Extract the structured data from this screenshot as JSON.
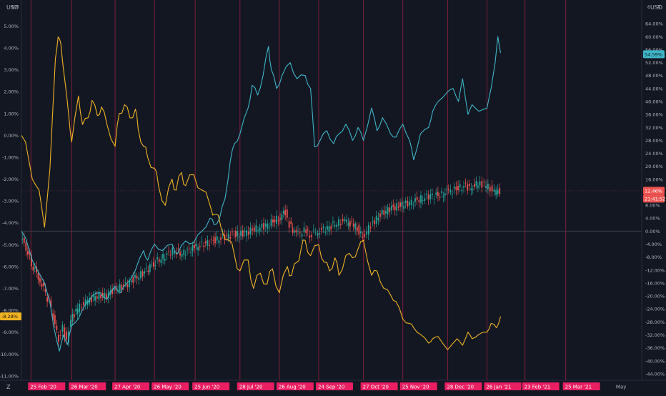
{
  "left_axis_currency": "USD",
  "left_axis_close": "x",
  "right_axis_currency": "USD",
  "right_axis_close": "x",
  "tz_button": "Z",
  "chart_data": {
    "type": "line",
    "title": "",
    "colors": {
      "background": "#131722",
      "grid": "#1f2332",
      "session_line": "#7c1f3a",
      "cyan_series": "#3fb6c8",
      "gold_series": "#f0b323",
      "candle_up": "#26a69a",
      "candle_down": "#ef5350",
      "axis_text": "#b2b5be",
      "date_label_bg": "#e91e63",
      "date_label_text": "#ffffff"
    },
    "left_axis": {
      "unit": "%",
      "range": [
        -11.2,
        5.7
      ],
      "ticks": [
        "5.00%",
        "4.00%",
        "3.00%",
        "2.00%",
        "1.00%",
        "0.00%",
        "-1.00%",
        "-2.00%",
        "-3.00%",
        "-4.00%",
        "-5.00%",
        "-6.00%",
        "-7.00%",
        "-8.00%",
        "-9.00%",
        "-10.00%",
        "-11.00%"
      ],
      "top_partial_tick": "6"
    },
    "right_axis": {
      "unit": "%",
      "range": [
        -46,
        68
      ],
      "ticks": [
        "64.00%",
        "60.00%",
        "56.00%",
        "52.00%",
        "48.00%",
        "44.00%",
        "40.00%",
        "36.00%",
        "32.00%",
        "28.00%",
        "24.00%",
        "20.00%",
        "16.00%",
        "12.00%",
        "8.00%",
        "4.00%",
        "0.00%",
        "-4.00%",
        "-8.00%",
        "-12.00%",
        "-16.00%",
        "-20.00%",
        "-24.00%",
        "-28.00%",
        "-32.00%",
        "-36.00%",
        "-40.00%",
        "-44.00%"
      ],
      "top_partial_tick": "6"
    },
    "x_axis": {
      "start": "2020-02-18",
      "end": "2021-05-20",
      "date_labels": [
        {
          "date": "2020-02-25",
          "label": "25 Feb '20"
        },
        {
          "date": "2020-03-26",
          "label": "26 Mar '20"
        },
        {
          "date": "2020-04-27",
          "label": "27 Apr '20"
        },
        {
          "date": "2020-05-26",
          "label": "26 May '20"
        },
        {
          "date": "2020-06-25",
          "label": "25 Jun '20"
        },
        {
          "date": "2020-07-28",
          "label": "28 Jul '20"
        },
        {
          "date": "2020-08-26",
          "label": "26 Aug '20"
        },
        {
          "date": "2020-09-24",
          "label": "24 Sep '20"
        },
        {
          "date": "2020-10-27",
          "label": "27 Oct '20"
        },
        {
          "date": "2020-11-25",
          "label": "25 Nov '20"
        },
        {
          "date": "2020-12-28",
          "label": "28 Dec '20"
        },
        {
          "date": "2021-01-26",
          "label": "26 Jan '21"
        },
        {
          "date": "2021-02-23",
          "label": "23 Feb '21"
        },
        {
          "date": "2021-03-25",
          "label": "25 Mar '21"
        }
      ],
      "plain_labels": [
        {
          "date": "2021-05-01",
          "label": "May"
        }
      ]
    },
    "badges": {
      "cyan_last": "54.59%",
      "candle_last": "12.46%",
      "candle_countdown": "21:41:52",
      "gold_last": "-8.28%"
    },
    "series": [
      {
        "role": "cyan",
        "axis": "right",
        "points": [
          [
            "2020-02-18",
            0.0
          ],
          [
            "2020-02-21",
            -2.0
          ],
          [
            "2020-02-26",
            -9.0
          ],
          [
            "2020-03-02",
            -13.0
          ],
          [
            "2020-03-06",
            -16.0
          ],
          [
            "2020-03-10",
            -22.0
          ],
          [
            "2020-03-13",
            -30.0
          ],
          [
            "2020-03-17",
            -37.0
          ],
          [
            "2020-03-20",
            -32.0
          ],
          [
            "2020-03-23",
            -35.0
          ],
          [
            "2020-03-26",
            -29.0
          ],
          [
            "2020-03-31",
            -27.0
          ],
          [
            "2020-04-06",
            -22.0
          ],
          [
            "2020-04-10",
            -20.0
          ],
          [
            "2020-04-16",
            -19.0
          ],
          [
            "2020-04-21",
            -21.0
          ],
          [
            "2020-04-27",
            -17.0
          ],
          [
            "2020-05-01",
            -19.0
          ],
          [
            "2020-05-06",
            -16.0
          ],
          [
            "2020-05-12",
            -12.0
          ],
          [
            "2020-05-18",
            -6.0
          ],
          [
            "2020-05-21",
            -9.0
          ],
          [
            "2020-05-26",
            -4.0
          ],
          [
            "2020-06-01",
            -6.0
          ],
          [
            "2020-06-08",
            -4.0
          ],
          [
            "2020-06-12",
            -7.0
          ],
          [
            "2020-06-18",
            -3.0
          ],
          [
            "2020-06-24",
            -3.5
          ],
          [
            "2020-06-30",
            0.0
          ],
          [
            "2020-07-06",
            4.0
          ],
          [
            "2020-07-09",
            2.0
          ],
          [
            "2020-07-13",
            4.0
          ],
          [
            "2020-07-17",
            10.0
          ],
          [
            "2020-07-21",
            22.0
          ],
          [
            "2020-07-24",
            27.0
          ],
          [
            "2020-07-28",
            30.0
          ],
          [
            "2020-08-03",
            38.0
          ],
          [
            "2020-08-06",
            45.0
          ],
          [
            "2020-08-10",
            42.0
          ],
          [
            "2020-08-14",
            48.0
          ],
          [
            "2020-08-18",
            57.0
          ],
          [
            "2020-08-20",
            50.0
          ],
          [
            "2020-08-24",
            44.0
          ],
          [
            "2020-08-28",
            48.0
          ],
          [
            "2020-09-03",
            52.0
          ],
          [
            "2020-09-08",
            47.0
          ],
          [
            "2020-09-14",
            48.0
          ],
          [
            "2020-09-18",
            44.0
          ],
          [
            "2020-09-21",
            26.0
          ],
          [
            "2020-09-25",
            28.0
          ],
          [
            "2020-09-30",
            31.0
          ],
          [
            "2020-10-05",
            27.0
          ],
          [
            "2020-10-09",
            30.0
          ],
          [
            "2020-10-14",
            33.0
          ],
          [
            "2020-10-19",
            28.0
          ],
          [
            "2020-10-23",
            32.0
          ],
          [
            "2020-10-27",
            28.0
          ],
          [
            "2020-11-02",
            38.0
          ],
          [
            "2020-11-06",
            31.0
          ],
          [
            "2020-11-10",
            35.0
          ],
          [
            "2020-11-16",
            30.0
          ],
          [
            "2020-11-20",
            29.0
          ],
          [
            "2020-11-25",
            33.0
          ],
          [
            "2020-11-30",
            28.0
          ],
          [
            "2020-12-03",
            22.0
          ],
          [
            "2020-12-08",
            30.0
          ],
          [
            "2020-12-14",
            32.0
          ],
          [
            "2020-12-17",
            37.0
          ],
          [
            "2020-12-21",
            40.0
          ],
          [
            "2020-12-28",
            43.0
          ],
          [
            "2021-01-01",
            44.0
          ],
          [
            "2021-01-05",
            40.0
          ],
          [
            "2021-01-08",
            47.0
          ],
          [
            "2021-01-12",
            36.0
          ],
          [
            "2021-01-15",
            39.0
          ],
          [
            "2021-01-20",
            37.0
          ],
          [
            "2021-01-26",
            38.0
          ],
          [
            "2021-01-29",
            44.0
          ],
          [
            "2021-02-01",
            52.0
          ],
          [
            "2021-02-03",
            60.0
          ],
          [
            "2021-02-05",
            55.0
          ]
        ]
      },
      {
        "role": "gold",
        "axis": "left",
        "points": [
          [
            "2020-02-18",
            0.0
          ],
          [
            "2020-02-21",
            -0.3
          ],
          [
            "2020-02-26",
            -2.0
          ],
          [
            "2020-03-02",
            -2.5
          ],
          [
            "2020-03-06",
            -4.2
          ],
          [
            "2020-03-10",
            -1.5
          ],
          [
            "2020-03-14",
            3.5
          ],
          [
            "2020-03-16",
            4.5
          ],
          [
            "2020-03-18",
            4.2
          ],
          [
            "2020-03-21",
            2.5
          ],
          [
            "2020-03-24",
            0.8
          ],
          [
            "2020-03-26",
            -0.3
          ],
          [
            "2020-03-31",
            1.8
          ],
          [
            "2020-04-03",
            0.5
          ],
          [
            "2020-04-07",
            0.8
          ],
          [
            "2020-04-10",
            1.6
          ],
          [
            "2020-04-14",
            0.9
          ],
          [
            "2020-04-17",
            1.3
          ],
          [
            "2020-04-21",
            0.5
          ],
          [
            "2020-04-27",
            -0.5
          ],
          [
            "2020-04-30",
            1.0
          ],
          [
            "2020-05-04",
            1.4
          ],
          [
            "2020-05-08",
            0.8
          ],
          [
            "2020-05-12",
            1.2
          ],
          [
            "2020-05-14",
            0.3
          ],
          [
            "2020-05-18",
            -0.5
          ],
          [
            "2020-05-21",
            -1.0
          ],
          [
            "2020-05-26",
            -1.5
          ],
          [
            "2020-05-29",
            -2.3
          ],
          [
            "2020-06-03",
            -3.2
          ],
          [
            "2020-06-08",
            -2.0
          ],
          [
            "2020-06-11",
            -2.5
          ],
          [
            "2020-06-15",
            -1.7
          ],
          [
            "2020-06-18",
            -2.3
          ],
          [
            "2020-06-24",
            -1.8
          ],
          [
            "2020-06-30",
            -2.5
          ],
          [
            "2020-07-06",
            -3.2
          ],
          [
            "2020-07-10",
            -3.6
          ],
          [
            "2020-07-14",
            -4.2
          ],
          [
            "2020-07-20",
            -4.8
          ],
          [
            "2020-07-24",
            -5.5
          ],
          [
            "2020-07-28",
            -6.2
          ],
          [
            "2020-08-03",
            -5.7
          ],
          [
            "2020-08-07",
            -7.0
          ],
          [
            "2020-08-12",
            -6.3
          ],
          [
            "2020-08-17",
            -6.8
          ],
          [
            "2020-08-21",
            -6.1
          ],
          [
            "2020-08-26",
            -7.2
          ],
          [
            "2020-09-01",
            -6.0
          ],
          [
            "2020-09-04",
            -6.4
          ],
          [
            "2020-09-08",
            -5.8
          ],
          [
            "2020-09-11",
            -5.2
          ],
          [
            "2020-09-14",
            -4.8
          ],
          [
            "2020-09-18",
            -5.5
          ],
          [
            "2020-09-24",
            -5.0
          ],
          [
            "2020-09-28",
            -5.8
          ],
          [
            "2020-10-02",
            -6.2
          ],
          [
            "2020-10-06",
            -5.6
          ],
          [
            "2020-10-09",
            -6.4
          ],
          [
            "2020-10-14",
            -5.5
          ],
          [
            "2020-10-19",
            -5.6
          ],
          [
            "2020-10-23",
            -5.2
          ],
          [
            "2020-10-27",
            -4.8
          ],
          [
            "2020-11-02",
            -6.4
          ],
          [
            "2020-11-06",
            -6.2
          ],
          [
            "2020-11-11",
            -7.0
          ],
          [
            "2020-11-16",
            -7.3
          ],
          [
            "2020-11-20",
            -7.6
          ],
          [
            "2020-11-25",
            -8.4
          ],
          [
            "2020-11-30",
            -8.6
          ],
          [
            "2020-12-03",
            -8.8
          ],
          [
            "2020-12-08",
            -9.1
          ],
          [
            "2020-12-14",
            -9.5
          ],
          [
            "2020-12-17",
            -9.3
          ],
          [
            "2020-12-21",
            -9.2
          ],
          [
            "2020-12-28",
            -9.8
          ],
          [
            "2021-01-04",
            -9.3
          ],
          [
            "2021-01-08",
            -9.6
          ],
          [
            "2021-01-12",
            -9.0
          ],
          [
            "2021-01-15",
            -9.3
          ],
          [
            "2021-01-20",
            -9.1
          ],
          [
            "2021-01-26",
            -9.0
          ],
          [
            "2021-01-29",
            -8.6
          ],
          [
            "2021-02-02",
            -8.8
          ],
          [
            "2021-02-05",
            -8.28
          ]
        ]
      }
    ],
    "candles": {
      "role": "candles",
      "axis": "right",
      "points": [
        [
          "2020-02-18",
          -2.0
        ],
        [
          "2020-02-22",
          -5.0
        ],
        [
          "2020-02-26",
          -10.0
        ],
        [
          "2020-03-02",
          -14.0
        ],
        [
          "2020-03-06",
          -18.0
        ],
        [
          "2020-03-10",
          -22.0
        ],
        [
          "2020-03-13",
          -27.0
        ],
        [
          "2020-03-17",
          -33.0
        ],
        [
          "2020-03-20",
          -30.0
        ],
        [
          "2020-03-23",
          -34.0
        ],
        [
          "2020-03-26",
          -27.0
        ],
        [
          "2020-03-31",
          -24.0
        ],
        [
          "2020-04-06",
          -22.0
        ],
        [
          "2020-04-13",
          -20.0
        ],
        [
          "2020-04-20",
          -20.0
        ],
        [
          "2020-04-27",
          -18.0
        ],
        [
          "2020-05-04",
          -17.0
        ],
        [
          "2020-05-11",
          -15.0
        ],
        [
          "2020-05-18",
          -13.0
        ],
        [
          "2020-05-26",
          -10.0
        ],
        [
          "2020-06-02",
          -8.0
        ],
        [
          "2020-06-09",
          -6.0
        ],
        [
          "2020-06-16",
          -7.0
        ],
        [
          "2020-06-25",
          -5.0
        ],
        [
          "2020-07-02",
          -4.0
        ],
        [
          "2020-07-09",
          -3.0
        ],
        [
          "2020-07-16",
          -2.0
        ],
        [
          "2020-07-23",
          -1.0
        ],
        [
          "2020-07-28",
          -1.0
        ],
        [
          "2020-08-04",
          0.0
        ],
        [
          "2020-08-11",
          1.0
        ],
        [
          "2020-08-18",
          2.0
        ],
        [
          "2020-08-26",
          4.0
        ],
        [
          "2020-08-31",
          6.0
        ],
        [
          "2020-09-03",
          2.0
        ],
        [
          "2020-09-08",
          -1.0
        ],
        [
          "2020-09-14",
          0.0
        ],
        [
          "2020-09-18",
          -1.0
        ],
        [
          "2020-09-24",
          0.0
        ],
        [
          "2020-10-01",
          1.0
        ],
        [
          "2020-10-08",
          2.5
        ],
        [
          "2020-10-14",
          3.0
        ],
        [
          "2020-10-19",
          2.0
        ],
        [
          "2020-10-23",
          1.0
        ],
        [
          "2020-10-27",
          -2.0
        ],
        [
          "2020-11-02",
          2.0
        ],
        [
          "2020-11-09",
          5.0
        ],
        [
          "2020-11-16",
          7.0
        ],
        [
          "2020-11-25",
          8.0
        ],
        [
          "2020-12-02",
          9.0
        ],
        [
          "2020-12-09",
          10.0
        ],
        [
          "2020-12-16",
          11.0
        ],
        [
          "2020-12-23",
          11.0
        ],
        [
          "2020-12-28",
          12.0
        ],
        [
          "2021-01-04",
          13.0
        ],
        [
          "2021-01-11",
          14.0
        ],
        [
          "2021-01-15",
          13.0
        ],
        [
          "2021-01-20",
          15.0
        ],
        [
          "2021-01-26",
          14.0
        ],
        [
          "2021-02-01",
          12.0
        ],
        [
          "2021-02-05",
          12.46
        ]
      ]
    }
  }
}
